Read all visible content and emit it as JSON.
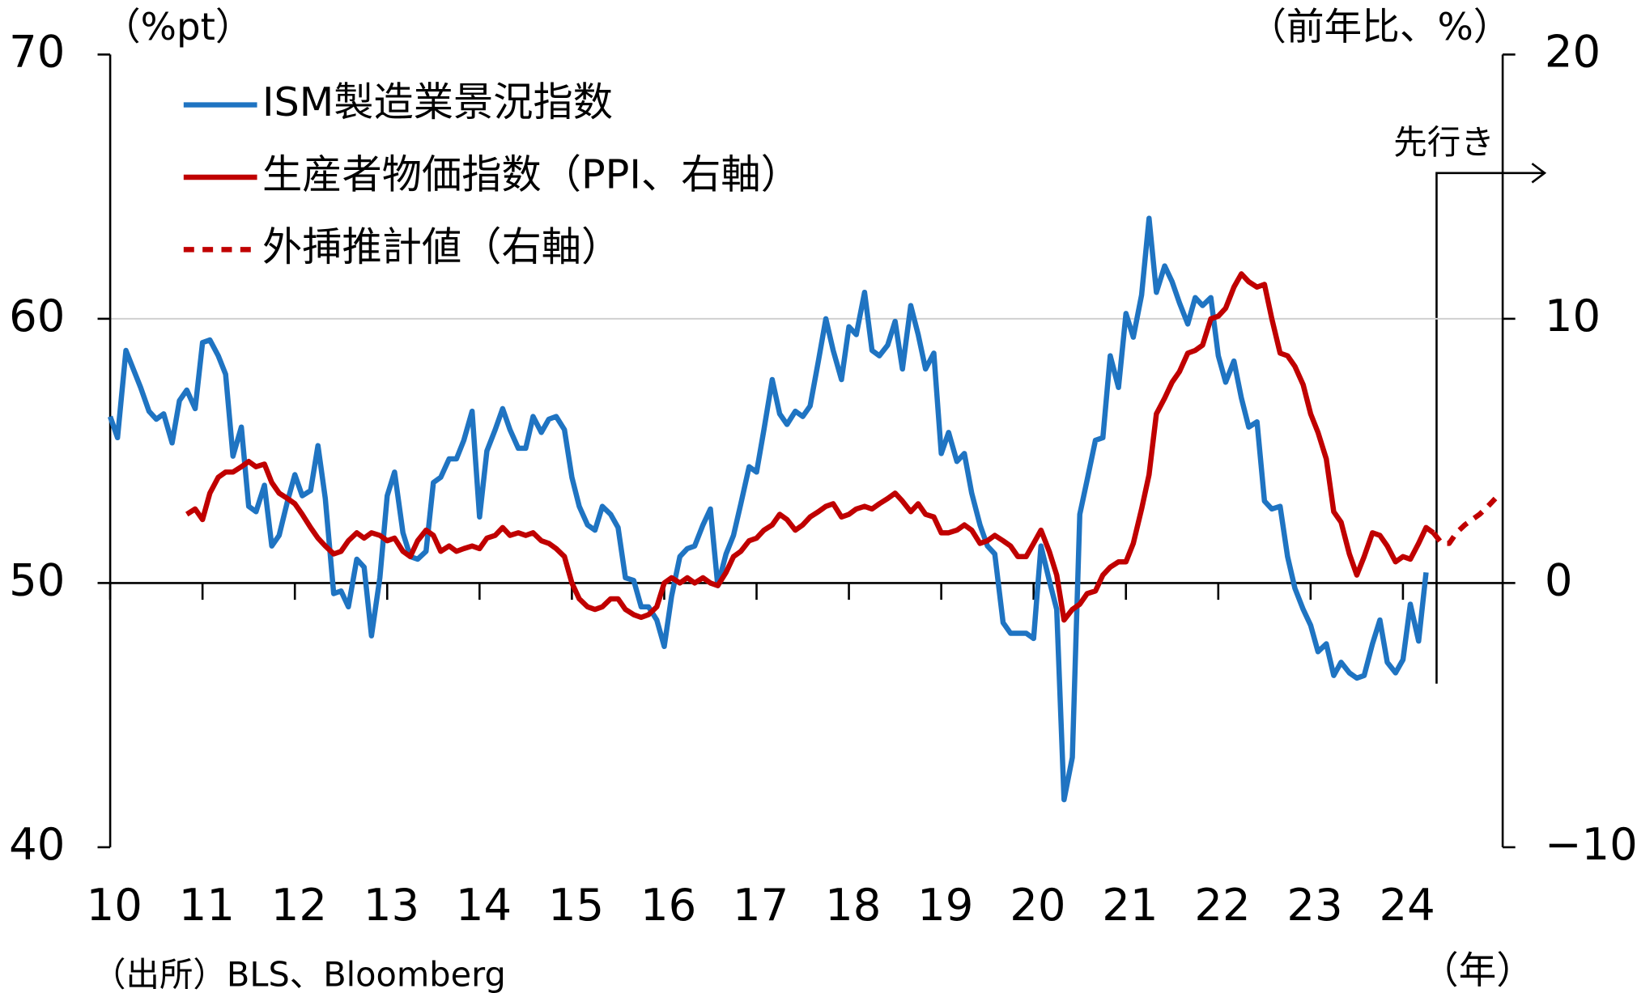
{
  "chart_data": {
    "type": "line",
    "unit_label": "（%pt）",
    "y2_unit_label": "（前年比、%）",
    "source": "（出所）BLS、Bloomberg",
    "x_unit_label": "（年）",
    "annotation": "先行き",
    "xlim": [
      2010,
      2025.08
    ],
    "xticks": [
      {
        "value": 2010,
        "label": "10"
      },
      {
        "value": 2011,
        "label": "11"
      },
      {
        "value": 2012,
        "label": "12"
      },
      {
        "value": 2013,
        "label": "13"
      },
      {
        "value": 2014,
        "label": "14"
      },
      {
        "value": 2015,
        "label": "15"
      },
      {
        "value": 2016,
        "label": "16"
      },
      {
        "value": 2017,
        "label": "17"
      },
      {
        "value": 2018,
        "label": "18"
      },
      {
        "value": 2019,
        "label": "19"
      },
      {
        "value": 2020,
        "label": "20"
      },
      {
        "value": 2021,
        "label": "21"
      },
      {
        "value": 2022,
        "label": "22"
      },
      {
        "value": 2023,
        "label": "23"
      },
      {
        "value": 2024,
        "label": "24"
      }
    ],
    "ylim": [
      40,
      70
    ],
    "yticks": [
      40,
      50,
      60,
      70
    ],
    "y2lim": [
      -10,
      20
    ],
    "y2ticks": [
      {
        "value": -10,
        "label": "−10"
      },
      0,
      10,
      20
    ],
    "grid": true,
    "x": [
      2010,
      2010.08,
      2010.17,
      2010.25,
      2010.33,
      2010.42,
      2010.5,
      2010.58,
      2010.67,
      2010.75,
      2010.83,
      2010.92,
      2011,
      2011.08,
      2011.17,
      2011.25,
      2011.33,
      2011.42,
      2011.5,
      2011.58,
      2011.67,
      2011.75,
      2011.83,
      2011.92,
      2012,
      2012.08,
      2012.17,
      2012.25,
      2012.33,
      2012.42,
      2012.5,
      2012.58,
      2012.67,
      2012.75,
      2012.83,
      2012.92,
      2013,
      2013.08,
      2013.17,
      2013.25,
      2013.33,
      2013.42,
      2013.5,
      2013.58,
      2013.67,
      2013.75,
      2013.83,
      2013.92,
      2014,
      2014.08,
      2014.17,
      2014.25,
      2014.33,
      2014.42,
      2014.5,
      2014.58,
      2014.67,
      2014.75,
      2014.83,
      2014.92,
      2015,
      2015.08,
      2015.17,
      2015.25,
      2015.33,
      2015.42,
      2015.5,
      2015.58,
      2015.67,
      2015.75,
      2015.83,
      2015.92,
      2016,
      2016.08,
      2016.17,
      2016.25,
      2016.33,
      2016.42,
      2016.5,
      2016.58,
      2016.67,
      2016.75,
      2016.83,
      2016.92,
      2017,
      2017.08,
      2017.17,
      2017.25,
      2017.33,
      2017.42,
      2017.5,
      2017.58,
      2017.67,
      2017.75,
      2017.83,
      2017.92,
      2018,
      2018.08,
      2018.17,
      2018.25,
      2018.33,
      2018.42,
      2018.5,
      2018.58,
      2018.67,
      2018.75,
      2018.83,
      2018.92,
      2019,
      2019.08,
      2019.17,
      2019.25,
      2019.33,
      2019.42,
      2019.5,
      2019.58,
      2019.67,
      2019.75,
      2019.83,
      2019.92,
      2020,
      2020.08,
      2020.17,
      2020.25,
      2020.33,
      2020.42,
      2020.5,
      2020.58,
      2020.67,
      2020.75,
      2020.83,
      2020.92,
      2021,
      2021.08,
      2021.17,
      2021.25,
      2021.33,
      2021.42,
      2021.5,
      2021.58,
      2021.67,
      2021.75,
      2021.83,
      2021.92,
      2022,
      2022.08,
      2022.17,
      2022.25,
      2022.33,
      2022.42,
      2022.5,
      2022.58,
      2022.67,
      2022.75,
      2022.83,
      2022.92,
      2023,
      2023.08,
      2023.17,
      2023.25,
      2023.33,
      2023.42,
      2023.5,
      2023.58,
      2023.67,
      2023.75,
      2023.83,
      2023.92,
      2024,
      2024.08,
      2024.17,
      2024.25,
      2024.33,
      2024.42,
      2024.5,
      2024.58,
      2024.67,
      2024.75,
      2024.83,
      2024.92,
      2025
    ],
    "series": [
      {
        "name": "ISM製造業景況指数",
        "color": "#1f74c2",
        "dashed": false,
        "values": [
          56.3,
          55.5,
          58.8,
          58.1,
          57.4,
          56.5,
          56.2,
          56.4,
          55.3,
          56.9,
          57.3,
          56.6,
          59.1,
          59.2,
          58.6,
          57.9,
          54.8,
          55.9,
          52.9,
          52.7,
          53.7,
          51.4,
          51.8,
          53.1,
          54.1,
          53.3,
          53.5,
          55.2,
          53.2,
          49.6,
          49.7,
          49.1,
          50.9,
          50.6,
          48.0,
          50.2,
          53.3,
          54.2,
          51.9,
          51.0,
          50.9,
          51.2,
          53.8,
          54.0,
          54.7,
          54.7,
          55.4,
          56.5,
          52.5,
          55.0,
          55.8,
          56.6,
          55.8,
          55.1,
          55.1,
          56.3,
          55.7,
          56.2,
          56.3,
          55.8,
          54.0,
          52.9,
          52.2,
          52.0,
          52.9,
          52.6,
          52.1,
          50.2,
          50.1,
          49.1,
          49.1,
          48.6,
          47.6,
          49.5,
          51.0,
          51.3,
          51.4,
          52.2,
          52.8,
          49.9,
          51.1,
          51.8,
          53.0,
          54.4,
          54.2,
          55.8,
          57.7,
          56.4,
          56.0,
          56.5,
          56.3,
          56.7,
          58.4,
          60.0,
          58.8,
          57.7,
          59.7,
          59.4,
          61.0,
          58.8,
          58.6,
          59.0,
          59.9,
          58.1,
          60.5,
          59.4,
          58.1,
          58.7,
          54.9,
          55.7,
          54.6,
          54.9,
          53.4,
          52.2,
          51.4,
          51.1,
          48.5,
          48.1,
          48.1,
          48.1,
          47.9,
          51.4,
          50.1,
          49.0,
          41.8,
          43.4,
          52.6,
          53.9,
          55.4,
          55.5,
          58.6,
          57.4,
          60.2,
          59.3,
          60.9,
          63.8,
          61.0,
          62.0,
          61.4,
          60.6,
          59.8,
          60.8,
          60.5,
          60.8,
          58.6,
          57.6,
          58.4,
          57.0,
          55.9,
          56.1,
          53.1,
          52.8,
          52.9,
          51.0,
          49.8,
          49.0,
          48.4,
          47.4,
          47.7,
          46.5,
          47.0,
          46.6,
          46.4,
          46.5,
          47.7,
          48.6,
          47.0,
          46.6,
          47.1,
          49.2,
          47.8,
          50.4,
          null,
          null,
          null,
          null,
          null,
          null,
          null,
          null,
          null
        ]
      },
      {
        "name": "生産者物価指数（PPI、右軸）",
        "color": "#c00000",
        "axis": "y2",
        "dashed": false,
        "values": [
          null,
          null,
          null,
          null,
          null,
          null,
          null,
          null,
          null,
          null,
          2.6,
          2.8,
          2.4,
          3.4,
          4.0,
          4.2,
          4.2,
          4.4,
          4.6,
          4.4,
          4.5,
          3.8,
          3.4,
          3.2,
          3.0,
          2.6,
          2.1,
          1.7,
          1.4,
          1.1,
          1.2,
          1.6,
          1.9,
          1.7,
          1.9,
          1.8,
          1.6,
          1.7,
          1.2,
          1.0,
          1.6,
          2.0,
          1.8,
          1.2,
          1.4,
          1.2,
          1.3,
          1.4,
          1.3,
          1.7,
          1.8,
          2.1,
          1.8,
          1.9,
          1.8,
          1.9,
          1.6,
          1.5,
          1.3,
          1.0,
          0.0,
          -0.6,
          -0.9,
          -1.0,
          -0.9,
          -0.6,
          -0.6,
          -1.0,
          -1.2,
          -1.3,
          -1.2,
          -0.9,
          0.0,
          0.2,
          0.0,
          0.2,
          0.0,
          0.2,
          0.0,
          -0.1,
          0.4,
          1.0,
          1.2,
          1.6,
          1.7,
          2.0,
          2.2,
          2.6,
          2.4,
          2.0,
          2.2,
          2.5,
          2.7,
          2.9,
          3.0,
          2.5,
          2.6,
          2.8,
          2.9,
          2.8,
          3.0,
          3.2,
          3.4,
          3.1,
          2.7,
          3.0,
          2.6,
          2.5,
          1.9,
          1.9,
          2.0,
          2.2,
          2.0,
          1.5,
          1.6,
          1.8,
          1.6,
          1.4,
          1.0,
          1.0,
          1.5,
          2.0,
          1.2,
          0.3,
          -1.4,
          -1.0,
          -0.8,
          -0.4,
          -0.3,
          0.3,
          0.6,
          0.8,
          0.8,
          1.5,
          2.8,
          4.1,
          6.4,
          7.0,
          7.6,
          8.0,
          8.7,
          8.8,
          9.0,
          10.0,
          10.1,
          10.4,
          11.2,
          11.7,
          11.4,
          11.2,
          11.3,
          10.0,
          8.7,
          8.6,
          8.2,
          7.5,
          6.4,
          5.7,
          4.7,
          2.7,
          2.3,
          1.1,
          0.3,
          1.0,
          1.9,
          1.8,
          1.4,
          0.8,
          1.0,
          0.9,
          1.5,
          2.1,
          1.9,
          null,
          null,
          null,
          null,
          null,
          null,
          null,
          null
        ]
      },
      {
        "name": "外挿推計値（右軸）",
        "color": "#c00000",
        "axis": "y2",
        "dashed": true,
        "values": [
          null,
          null,
          null,
          null,
          null,
          null,
          null,
          null,
          null,
          null,
          null,
          null,
          null,
          null,
          null,
          null,
          null,
          null,
          null,
          null,
          null,
          null,
          null,
          null,
          null,
          null,
          null,
          null,
          null,
          null,
          null,
          null,
          null,
          null,
          null,
          null,
          null,
          null,
          null,
          null,
          null,
          null,
          null,
          null,
          null,
          null,
          null,
          null,
          null,
          null,
          null,
          null,
          null,
          null,
          null,
          null,
          null,
          null,
          null,
          null,
          null,
          null,
          null,
          null,
          null,
          null,
          null,
          null,
          null,
          null,
          null,
          null,
          null,
          null,
          null,
          null,
          null,
          null,
          null,
          null,
          null,
          null,
          null,
          null,
          null,
          null,
          null,
          null,
          null,
          null,
          null,
          null,
          null,
          null,
          null,
          null,
          null,
          null,
          null,
          null,
          null,
          null,
          null,
          null,
          null,
          null,
          null,
          null,
          null,
          null,
          null,
          null,
          null,
          null,
          null,
          null,
          null,
          null,
          null,
          null,
          null,
          null,
          null,
          null,
          null,
          null,
          null,
          null,
          null,
          null,
          null,
          null,
          null,
          null,
          null,
          null,
          null,
          null,
          null,
          null,
          null,
          null,
          null,
          null,
          null,
          null,
          null,
          null,
          null,
          null,
          null,
          null,
          null,
          null,
          null,
          null,
          null,
          null,
          null,
          null,
          null,
          null,
          null,
          null,
          null,
          null,
          null,
          null,
          null,
          null,
          null,
          null,
          1.9,
          1.5,
          1.5,
          1.9,
          2.2,
          2.4,
          2.6,
          2.9,
          3.2
        ]
      }
    ]
  }
}
